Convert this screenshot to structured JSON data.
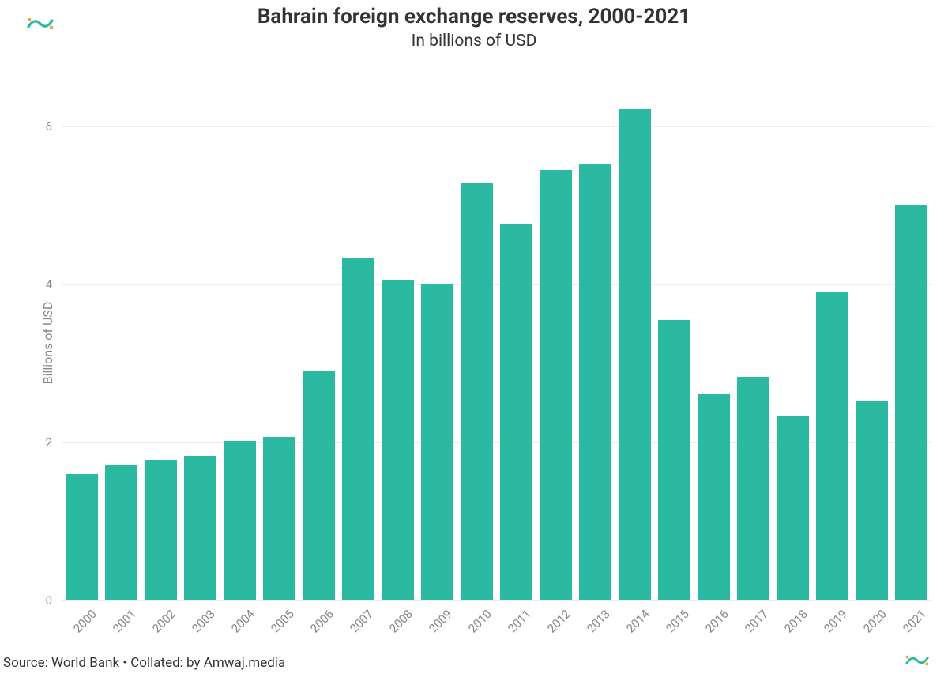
{
  "title": "Bahrain foreign exchange reserves, 2000-2021",
  "subtitle": "In billions of USD",
  "ylabel": "Billions of USD",
  "source": "Source: World Bank • Collated: by Amwaj.media",
  "chart": {
    "type": "bar",
    "categories": [
      "2000",
      "2001",
      "2002",
      "2003",
      "2004",
      "2005",
      "2006",
      "2007",
      "2008",
      "2009",
      "2010",
      "2011",
      "2012",
      "2013",
      "2014",
      "2015",
      "2016",
      "2017",
      "2018",
      "2019",
      "2020",
      "2021"
    ],
    "values": [
      1.6,
      1.72,
      1.78,
      1.83,
      2.02,
      2.07,
      2.9,
      4.33,
      4.06,
      4.01,
      5.29,
      4.77,
      5.45,
      5.52,
      6.22,
      3.55,
      2.61,
      2.83,
      2.33,
      3.91,
      2.52,
      5.0
    ],
    "bar_color": "#2bb9a2",
    "background_color": "#ffffff",
    "grid_color": "#ebebeb",
    "ylim": [
      0,
      6.6
    ],
    "yticks": [
      0,
      2,
      4,
      6
    ],
    "title_fontsize": 26,
    "subtitle_fontsize": 21,
    "ylabel_fontsize": 16,
    "tick_fontsize": 15,
    "source_fontsize": 17,
    "tick_color": "#888888",
    "title_color": "#333333",
    "bar_width_ratio": 0.82,
    "logo_colors": {
      "teal": "#2bb9a2",
      "orange": "#f2a33a"
    }
  }
}
